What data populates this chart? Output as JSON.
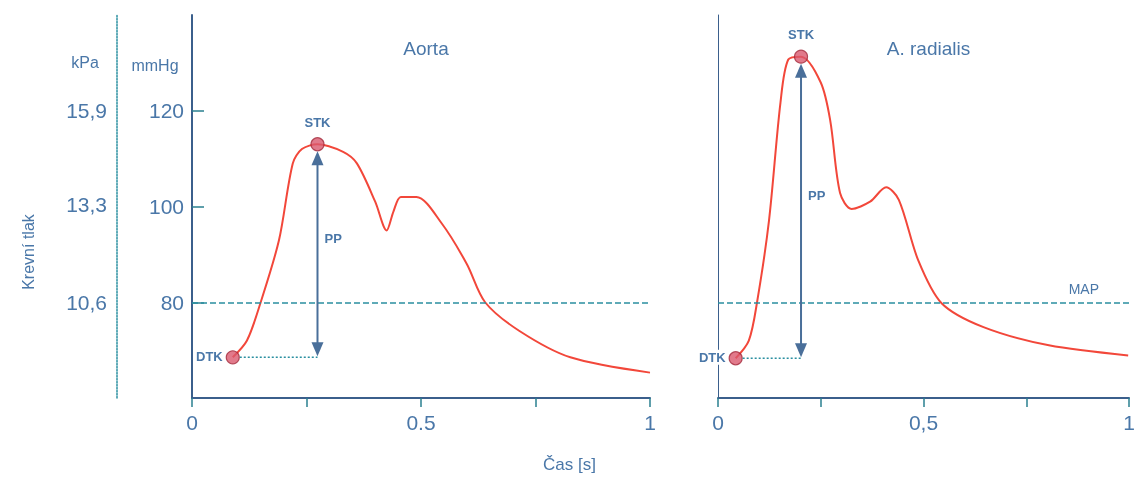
{
  "chart_data": [
    {
      "type": "line",
      "title": "Aorta",
      "xlabel": "Čas [s]",
      "ylabel": "mmHg",
      "y2label": "kPa",
      "xlim": [
        0,
        1
      ],
      "xticks": [
        0,
        {
          "value": 0.25,
          "label": null
        },
        0.5,
        {
          "value": 0.75,
          "label": null
        },
        1
      ],
      "ylim": [
        60,
        140
      ],
      "yticks": [
        80,
        100,
        120
      ],
      "y2lim": [
        7.95,
        18.55
      ],
      "y2ticks": [
        {
          "value": 10.6,
          "label": "10,6"
        },
        {
          "value": 13.3,
          "label": "13,3"
        },
        {
          "value": 15.9,
          "label": "15,9"
        }
      ],
      "grid": false,
      "series": [
        {
          "color": "#f2473a",
          "x": [
            0.089,
            0.12,
            0.15,
            0.19,
            0.22,
            0.24,
            0.274,
            0.33,
            0.36,
            0.4,
            0.425,
            0.44,
            0.456,
            0.49,
            0.545,
            0.6,
            0.64,
            0.715,
            0.826,
            1.0
          ],
          "values": [
            68.5,
            72,
            80,
            93,
            109,
            112,
            113,
            111.4,
            109,
            101,
            95,
            99,
            102,
            102,
            96.5,
            88,
            80,
            74,
            68.5,
            65.3
          ]
        },
        {
          "type": "scatter",
          "color": "#d9596e",
          "x": [
            0.089,
            0.274
          ],
          "values": [
            68.5,
            113
          ]
        }
      ],
      "ref_lines": [
        {
          "axis": "y",
          "value": 80,
          "color": "#2a8fa0",
          "line_style": "dashed"
        }
      ],
      "annotations": [
        "STK",
        "DTK",
        "PP",
        "Krevní tlak"
      ]
    },
    {
      "type": "line",
      "title": "A. radialis",
      "tick_labels": "x",
      "ylim": [
        60,
        140
      ],
      "yticks": [
        80,
        100,
        120
      ],
      "xlim": [
        0,
        1
      ],
      "xticks": [
        0,
        {
          "value": 0.25,
          "label": null
        },
        {
          "value": 0.5,
          "label": "0,5"
        },
        {
          "value": 0.75,
          "label": null
        },
        1
      ],
      "grid": false,
      "series": [
        {
          "color": "#f2473a",
          "x": [
            0.043,
            0.075,
            0.095,
            0.124,
            0.152,
            0.171,
            0.202,
            0.25,
            0.273,
            0.297,
            0.325,
            0.37,
            0.409,
            0.44,
            0.487,
            0.544,
            0.646,
            0.805,
            0.998
          ],
          "values": [
            68.3,
            72,
            80,
            97,
            121.7,
            130.7,
            131.3,
            125.9,
            118,
            102.8,
            99.5,
            101,
            104,
            101.4,
            88.8,
            79.8,
            74.8,
            71,
            68.9
          ]
        },
        {
          "type": "scatter",
          "color": "#d9596e",
          "x": [
            0.043,
            0.202
          ],
          "values": [
            68.3,
            131.3
          ]
        }
      ],
      "ref_lines": [
        {
          "axis": "y",
          "value": 80,
          "label": "MAP",
          "color": "#2a8fa0",
          "line_style": "dashed"
        }
      ],
      "annotations": [
        "STK",
        "DTK",
        "PP"
      ]
    }
  ]
}
